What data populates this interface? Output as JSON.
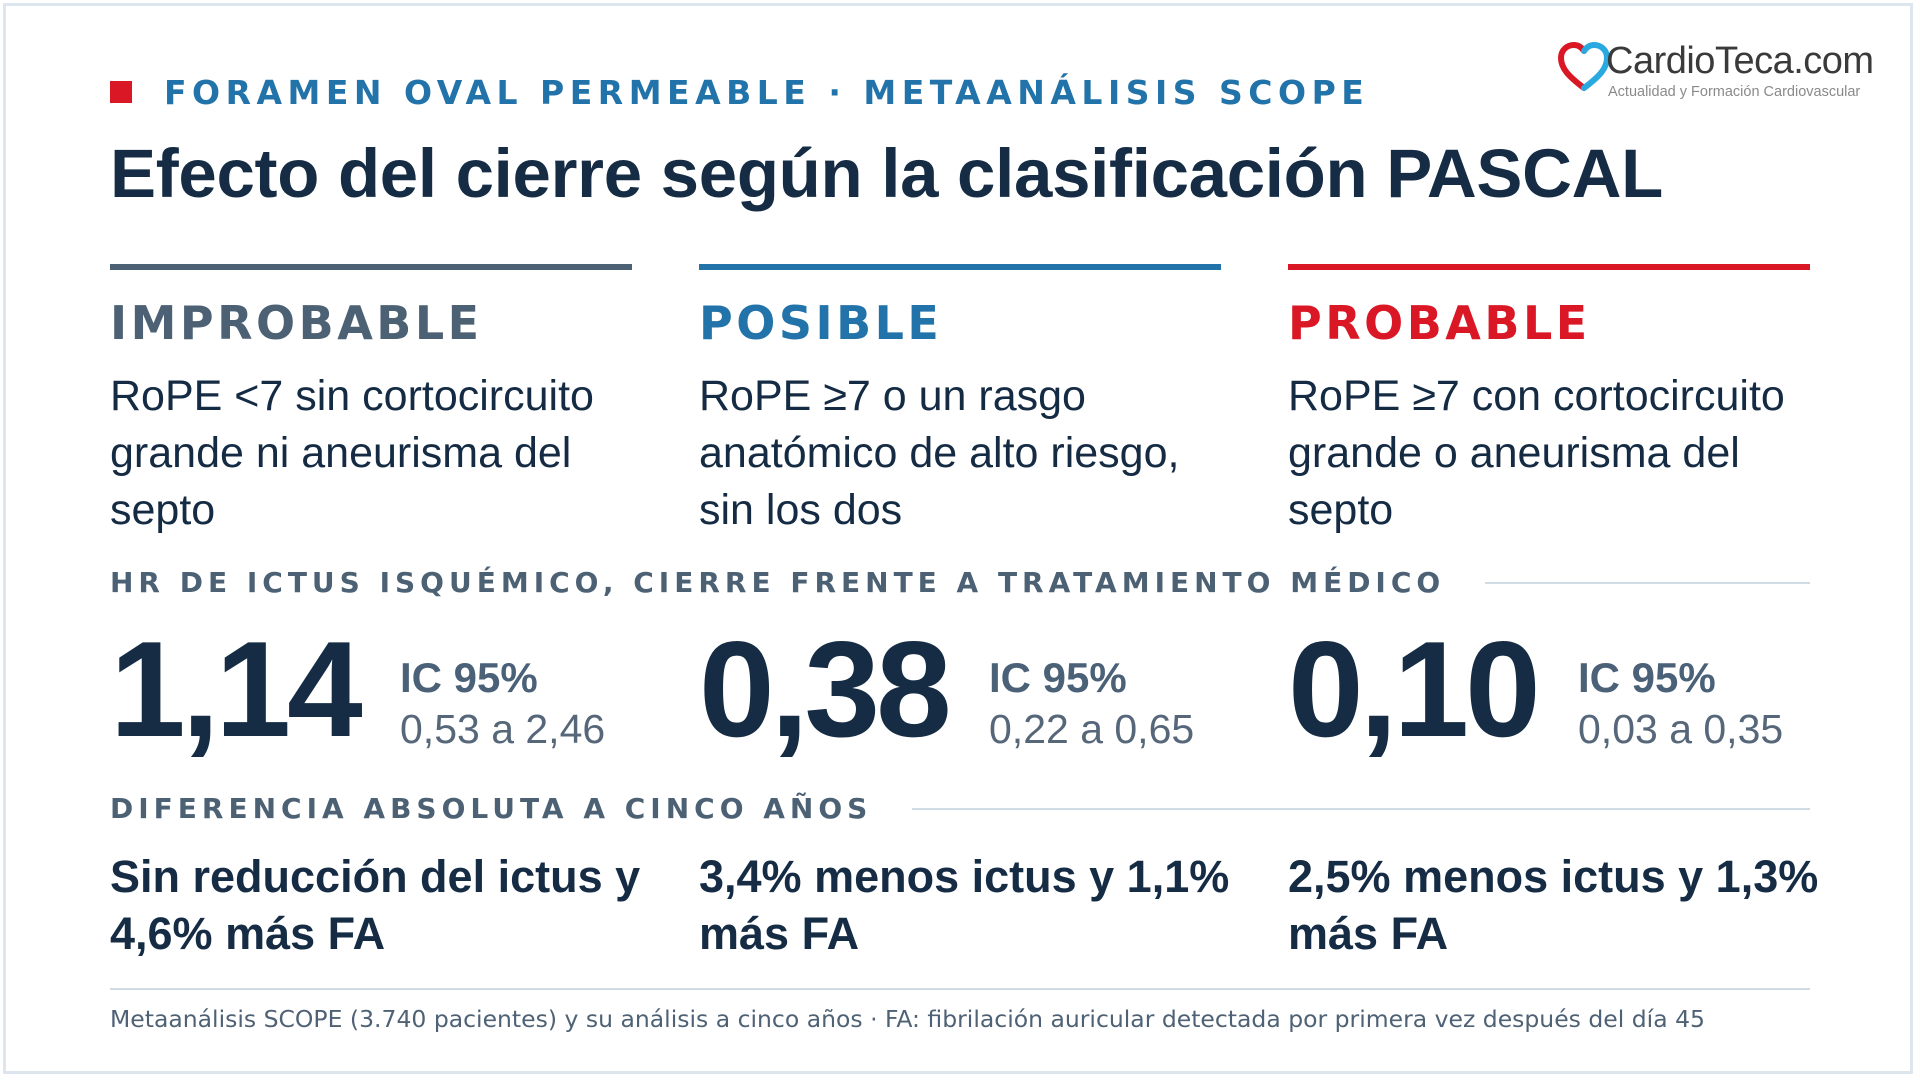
{
  "kicker": "FORAMEN OVAL PERMEABLE · METAANÁLISIS SCOPE",
  "title": "Efecto del cierre según la clasificación PASCAL",
  "logo": {
    "brand": "CardioTeca.com",
    "tagline": "Actualidad y Formación Cardiovascular",
    "heart_colors": [
      "#d91725",
      "#2aa8e0"
    ]
  },
  "colors": {
    "improbable": "#4c6174",
    "posible": "#2273a9",
    "probable": "#d91725",
    "ink": "#152c44"
  },
  "columns": [
    {
      "label": "IMPROBABLE",
      "description": "RoPE <7 sin cortocircuito grande ni aneurisma del septo",
      "hr": "1,14",
      "ic_label": "IC 95%",
      "ic_range": "0,53 a 2,46",
      "difference": "Sin reducción del ictus y 4,6% más FA"
    },
    {
      "label": "POSIBLE",
      "description": "RoPE ≥7 o un rasgo anatómico de alto riesgo, sin los dos",
      "hr": "0,38",
      "ic_label": "IC 95%",
      "ic_range": "0,22 a 0,65",
      "difference": "3,4% menos ictus y 1,1% más FA"
    },
    {
      "label": "PROBABLE",
      "description": "RoPE ≥7 con cortocircuito grande o aneurisma del septo",
      "hr": "0,10",
      "ic_label": "IC 95%",
      "ic_range": "0,03 a 0,35",
      "difference": "2,5% menos ictus y 1,3% más FA"
    }
  ],
  "section_hr": "HR DE ICTUS ISQUÉMICO, CIERRE FRENTE A TRATAMIENTO MÉDICO",
  "section_diff": "DIFERENCIA ABSOLUTA A CINCO AÑOS",
  "footnote": "Metaanálisis SCOPE (3.740 pacientes) y su análisis a cinco años · FA: fibrilación auricular detectada por primera vez después del día 45"
}
